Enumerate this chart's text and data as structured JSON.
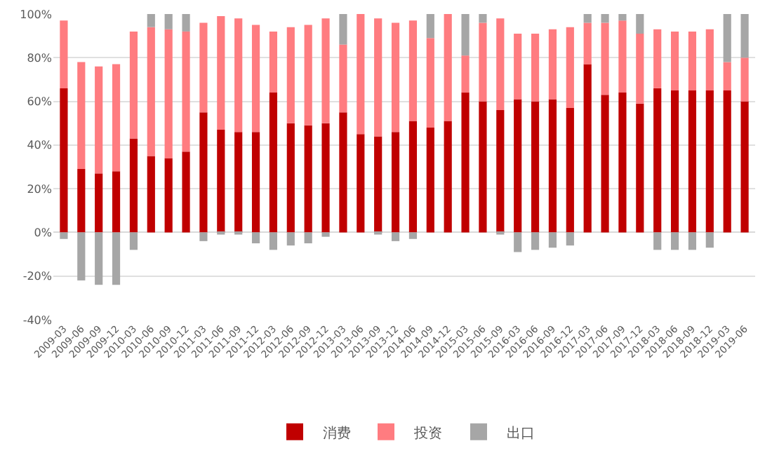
{
  "chart_data": {
    "type": "bar",
    "stacked": true,
    "categories": [
      "2009-03",
      "2009-06",
      "2009-09",
      "2009-12",
      "2010-03",
      "2010-06",
      "2010-09",
      "2010-12",
      "2011-03",
      "2011-06",
      "2011-09",
      "2011-12",
      "2012-03",
      "2012-06",
      "2012-09",
      "2012-12",
      "2013-03",
      "2013-06",
      "2013-09",
      "2013-12",
      "2014-06",
      "2014-09",
      "2014-12",
      "2015-03",
      "2015-06",
      "2015-09",
      "2016-03",
      "2016-06",
      "2016-09",
      "2016-12",
      "2017-03",
      "2017-06",
      "2017-09",
      "2017-12",
      "2018-03",
      "2018-06",
      "2018-09",
      "2018-12",
      "2019-03",
      "2019-06"
    ],
    "series": [
      {
        "name": "消费",
        "color": "#c00000",
        "values": [
          66,
          29,
          27,
          28,
          43,
          35,
          34,
          37,
          55,
          47,
          46,
          46,
          64,
          50,
          49,
          50,
          55,
          45,
          44,
          46,
          51,
          48,
          51,
          64,
          60,
          56,
          61,
          60,
          61,
          57,
          77,
          63,
          64,
          59,
          66,
          65,
          65,
          65,
          65,
          60
        ]
      },
      {
        "name": "投资",
        "color": "#ff7c80",
        "values": [
          31,
          49,
          49,
          49,
          49,
          59,
          59,
          55,
          41,
          52,
          52,
          49,
          28,
          44,
          46,
          48,
          31,
          55,
          54,
          50,
          46,
          41,
          49,
          17,
          36,
          42,
          30,
          31,
          32,
          37,
          19,
          33,
          33,
          32,
          27,
          27,
          27,
          28,
          13,
          20
        ]
      },
      {
        "name": "出口",
        "color": "#a6a6a6",
        "values": [
          -3,
          -22,
          -24,
          -24,
          -8,
          6,
          7,
          8,
          -4,
          -1,
          -1,
          -5,
          -8,
          -6,
          -5,
          -2,
          14,
          null,
          -1,
          -4,
          -3,
          11,
          null,
          19,
          4,
          -1,
          -9,
          -8,
          -7,
          -6,
          4,
          4,
          3,
          9,
          -8,
          -8,
          -8,
          -7,
          22,
          20
        ]
      }
    ],
    "ylim": [
      -40,
      100
    ],
    "yticks": [
      {
        "value": -40,
        "label": "-40%"
      },
      {
        "value": -20,
        "label": "-20%"
      },
      {
        "value": 0,
        "label": "0%"
      },
      {
        "value": 20,
        "label": "20%"
      },
      {
        "value": 40,
        "label": "40%"
      },
      {
        "value": 60,
        "label": "60%"
      },
      {
        "value": 80,
        "label": "80%"
      },
      {
        "value": 100,
        "label": "100%"
      }
    ],
    "grid": "y",
    "legend": "bottom"
  }
}
